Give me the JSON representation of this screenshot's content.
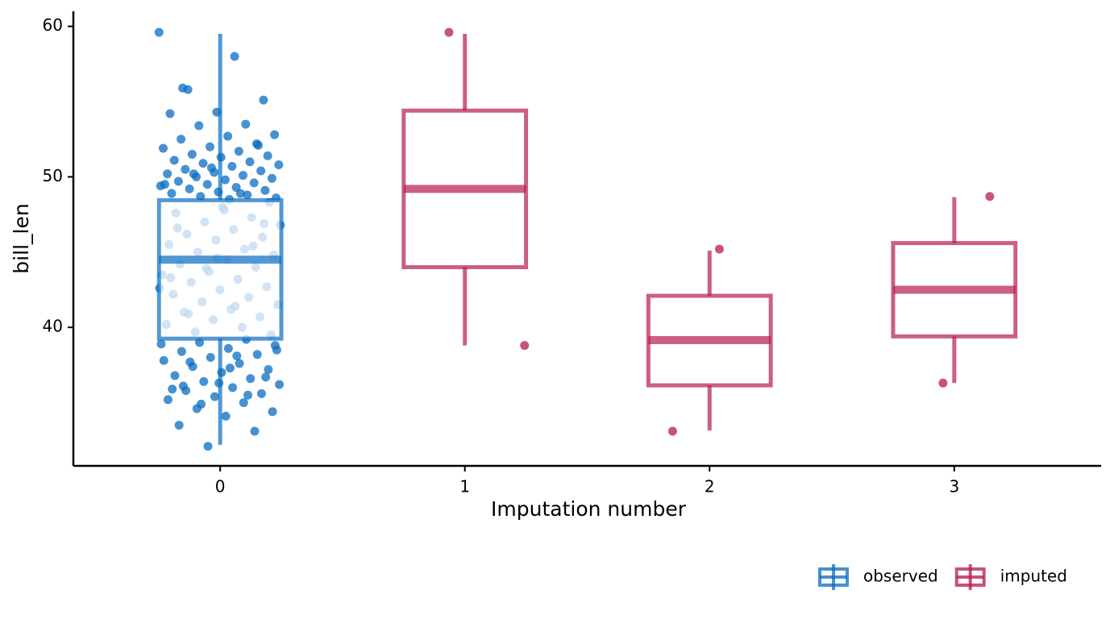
{
  "chart_data": {
    "type": "box",
    "x_label": "Imputation number",
    "y_label": "bill_len",
    "categories": [
      "0",
      "1",
      "2",
      "3"
    ],
    "ylim": [
      30.8,
      61.0
    ],
    "yticks": [
      40,
      50,
      60
    ],
    "legend": "bottom-right",
    "series": [
      {
        "name": "observed",
        "color": "#0a6cc2",
        "boxes": [
          {
            "x": "0",
            "whislo": 32.2,
            "q1": 39.25,
            "median": 44.5,
            "q3": 48.45,
            "whishi": 59.5,
            "points": [
              59.6,
              58.0,
              55.8,
              55.1,
              54.3,
              54.2,
              53.5,
              53.4,
              52.8,
              52.7,
              52.5,
              52.2,
              52.0,
              51.9,
              51.7,
              51.5,
              51.4,
              51.3,
              51.1,
              51.0,
              50.9,
              50.8,
              50.7,
              50.5,
              50.4,
              50.3,
              50.2,
              50.1,
              50.0,
              49.9,
              49.8,
              49.7,
              49.6,
              49.5,
              49.4,
              49.3,
              49.2,
              49.1,
              49.0,
              48.9,
              48.8,
              48.7,
              48.6,
              48.5,
              55.9,
              52.1,
              50.6,
              49.5,
              48.9,
              50.2,
              48.3,
              48.0,
              47.6,
              47.3,
              47.0,
              46.8,
              46.5,
              46.2,
              46.0,
              45.8,
              45.5,
              45.2,
              45.0,
              44.8,
              44.5,
              44.2,
              44.0,
              43.7,
              43.5,
              43.2,
              43.0,
              42.7,
              42.5,
              42.2,
              42.0,
              41.7,
              41.5,
              41.2,
              41.0,
              40.7,
              40.5,
              40.2,
              40.0,
              39.7,
              39.5,
              47.8,
              46.6,
              45.4,
              43.9,
              42.6,
              41.4,
              40.9,
              46.9,
              44.6,
              43.3,
              39.2,
              39.0,
              38.8,
              38.6,
              38.4,
              38.2,
              38.0,
              37.8,
              37.6,
              37.4,
              37.2,
              37.0,
              36.8,
              36.6,
              36.4,
              36.2,
              36.0,
              35.8,
              35.6,
              35.4,
              35.2,
              35.0,
              34.6,
              34.4,
              34.1,
              33.5,
              33.1,
              32.1,
              38.9,
              38.1,
              37.7,
              36.7,
              36.3,
              35.9,
              35.5,
              34.9,
              38.5,
              37.3,
              36.1
            ]
          }
        ]
      },
      {
        "name": "imputed",
        "color": "#b61a51",
        "boxes": [
          {
            "x": "1",
            "whislo": 38.8,
            "q1": 44.0,
            "median": 49.2,
            "q3": 54.4,
            "whishi": 59.5,
            "points": [
              59.6,
              38.8
            ]
          },
          {
            "x": "2",
            "whislo": 33.15,
            "q1": 36.15,
            "median": 39.15,
            "q3": 42.1,
            "whishi": 45.1,
            "points": [
              45.2,
              33.1
            ]
          },
          {
            "x": "3",
            "whislo": 36.3,
            "q1": 39.4,
            "median": 42.5,
            "q3": 45.6,
            "whishi": 48.65,
            "points": [
              48.7,
              36.3
            ]
          }
        ]
      }
    ]
  }
}
